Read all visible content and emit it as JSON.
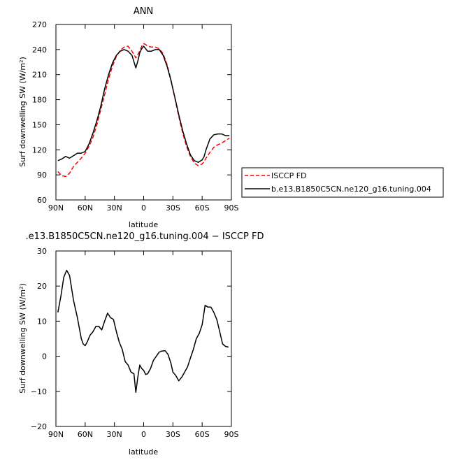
{
  "chart_data": [
    {
      "type": "line",
      "title": "ANN",
      "xlabel": "latitude",
      "ylabel": "Surf downwelling SW (W/m²)",
      "xticks": [
        "90N",
        "60N",
        "30N",
        "0",
        "30S",
        "60S",
        "90S"
      ],
      "yticks": [
        "60",
        "90",
        "120",
        "150",
        "180",
        "210",
        "240",
        "270"
      ],
      "xlim": [
        90,
        -90
      ],
      "ylim": [
        60,
        270
      ],
      "grid": false,
      "legend_position": "right",
      "series": [
        {
          "name": "ISCCP FD",
          "color": "#ff0000",
          "dash": "dashed",
          "x": [
            88,
            84,
            80,
            76,
            72,
            68,
            64,
            60,
            56,
            52,
            48,
            44,
            40,
            36,
            32,
            28,
            24,
            20,
            16,
            12,
            8,
            4,
            2,
            0,
            -2,
            -4,
            -8,
            -12,
            -16,
            -20,
            -24,
            -28,
            -32,
            -36,
            -40,
            -44,
            -48,
            -52,
            -56,
            -60,
            -62,
            -64,
            -68,
            -72,
            -76,
            -80,
            -84,
            -88
          ],
          "y": [
            94,
            89,
            88,
            92,
            100,
            105,
            110,
            116,
            124,
            135,
            150,
            168,
            186,
            205,
            220,
            232,
            239,
            243,
            244,
            238,
            230,
            238,
            244,
            247,
            246,
            244,
            243,
            243,
            241,
            235,
            222,
            204,
            182,
            160,
            140,
            124,
            112,
            104,
            101,
            103,
            106,
            110,
            117,
            123,
            126,
            128,
            131,
            134
          ]
        },
        {
          "name": "b.e13.B1850C5CN.ne120_g16.tuning.004",
          "color": "#000000",
          "dash": "solid",
          "x": [
            88,
            84,
            80,
            76,
            72,
            68,
            64,
            60,
            56,
            52,
            48,
            44,
            40,
            36,
            32,
            28,
            24,
            20,
            16,
            12,
            8,
            6,
            4,
            2,
            0,
            -2,
            -4,
            -8,
            -12,
            -16,
            -20,
            -24,
            -28,
            -32,
            -36,
            -40,
            -44,
            -48,
            -52,
            -56,
            -60,
            -62,
            -64,
            -68,
            -72,
            -76,
            -80,
            -84,
            -88
          ],
          "y": [
            107,
            109,
            112,
            110,
            113,
            116,
            116,
            118,
            127,
            140,
            155,
            172,
            193,
            210,
            224,
            233,
            238,
            240,
            238,
            233,
            218,
            226,
            236,
            241,
            244,
            241,
            238,
            238,
            240,
            240,
            233,
            220,
            203,
            183,
            162,
            143,
            127,
            114,
            107,
            105,
            108,
            112,
            120,
            133,
            138,
            139,
            139,
            137,
            137
          ]
        }
      ]
    },
    {
      "type": "line",
      "title": ".e13.B1850C5CN.ne120_g16.tuning.004 − ISCCP FD",
      "xlabel": "latitude",
      "ylabel": "Surf downwelling SW (W/m²)",
      "xticks": [
        "90N",
        "60N",
        "30N",
        "0",
        "30S",
        "60S",
        "90S"
      ],
      "yticks": [
        "−20",
        "−10",
        "0",
        "10",
        "20",
        "30"
      ],
      "xlim": [
        90,
        -90
      ],
      "ylim": [
        -20,
        30
      ],
      "grid": false,
      "series": [
        {
          "color": "#000000",
          "dash": "solid",
          "x": [
            88,
            85,
            82,
            79,
            76,
            72,
            68,
            64,
            62,
            60,
            58,
            55,
            52,
            49,
            46,
            43,
            40,
            37,
            34,
            31,
            28,
            25,
            22,
            19,
            16,
            13,
            10,
            8,
            6,
            4,
            2,
            0,
            -2,
            -4,
            -7,
            -10,
            -13,
            -16,
            -19,
            -22,
            -25,
            -28,
            -30,
            -33,
            -36,
            -39,
            -42,
            -45,
            -48,
            -51,
            -54,
            -57,
            -60,
            -63,
            -66,
            -69,
            -72,
            -75,
            -78,
            -81,
            -84,
            -87
          ],
          "y": [
            12.5,
            17,
            22.5,
            24.5,
            23,
            16,
            11,
            5,
            3.5,
            3,
            4,
            6,
            7,
            8.5,
            8.5,
            7.5,
            10,
            12.3,
            11,
            10.5,
            7,
            4,
            2,
            -1.5,
            -2.5,
            -4.5,
            -5,
            -10.3,
            -6,
            -2.5,
            -3.5,
            -4,
            -5.2,
            -5,
            -3.5,
            -1.2,
            0,
            1.2,
            1.5,
            1.6,
            0.5,
            -2,
            -4.5,
            -5.5,
            -7,
            -6,
            -4.5,
            -3,
            -0.5,
            2,
            5,
            6.5,
            9,
            14.5,
            14,
            14,
            12.5,
            10.5,
            7,
            3.5,
            2.8,
            2.6
          ]
        }
      ]
    }
  ]
}
